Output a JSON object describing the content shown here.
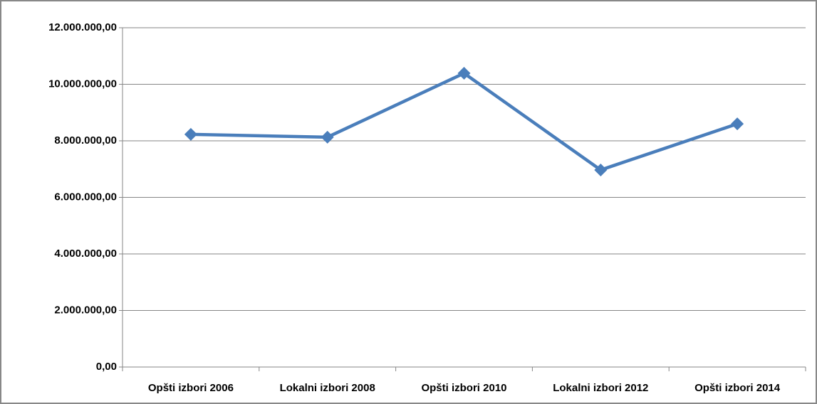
{
  "chart_data": {
    "type": "line",
    "categories": [
      "Opšti izbori 2006",
      "Lokalni izbori 2008",
      "Opšti izbori 2010",
      "Lokalni izbori 2012",
      "Opšti izbori 2014"
    ],
    "values": [
      8230000,
      8130000,
      10390000,
      6970000,
      8600000
    ],
    "color": "#4a7ebb",
    "ylim": [
      0,
      12000000
    ],
    "yticks": [
      {
        "value": 0,
        "label": "0,00"
      },
      {
        "value": 2000000,
        "label": "2.000.000,00"
      },
      {
        "value": 4000000,
        "label": "4.000.000,00"
      },
      {
        "value": 6000000,
        "label": "6.000.000,00"
      },
      {
        "value": 8000000,
        "label": "8.000.000,00"
      },
      {
        "value": 10000000,
        "label": "10.000.000,00"
      },
      {
        "value": 12000000,
        "label": "12.000.000,00"
      }
    ],
    "grid": true
  }
}
